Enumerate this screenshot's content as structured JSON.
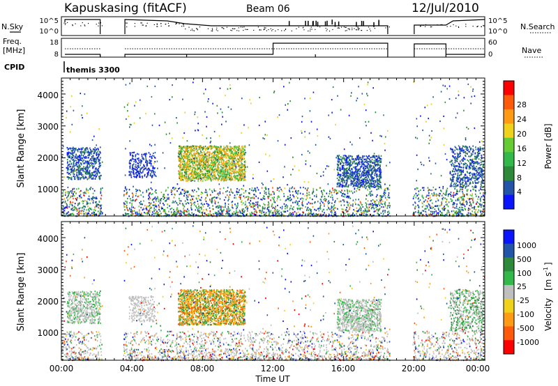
{
  "header": {
    "station": "Kapuskasing (fitACF)",
    "beam": "Beam 06",
    "date": "12/Jul/2010"
  },
  "side_labels": {
    "nsky": "N.Sky",
    "freq_line1": "Freq.",
    "freq_line2": "[MHz]",
    "cpid": "CPID",
    "nsearch": "N.Search",
    "nave": "Nave"
  },
  "cpid_value": "themis 3300",
  "colors": {
    "power_scale": [
      "#0a14ff",
      "#2255a8",
      "#2c8a3a",
      "#33b84a",
      "#66cc33",
      "#f0d21a",
      "#ff9a14",
      "#ff5a0a",
      "#ff0000"
    ],
    "velocity_scale": [
      "#0a14ff",
      "#2255a8",
      "#2c8a3a",
      "#33b84a",
      "#bfbfbf",
      "#f0d21a",
      "#ff9a14",
      "#ff5a0a",
      "#ff0000"
    ]
  },
  "chart_data": [
    {
      "type": "line",
      "panel": "noise",
      "y_tick_labels": [
        "10^5",
        "10^0"
      ],
      "right_tick_labels": [
        "10^5",
        "10^0"
      ]
    },
    {
      "type": "line",
      "panel": "frequency",
      "ylim_left": [
        8,
        18
      ],
      "y_tick_labels": [
        "18",
        "8"
      ],
      "right_tick_labels": [
        "60",
        "0"
      ]
    },
    {
      "type": "heatmap",
      "panel": "power",
      "ylabel": "Slant Range [km]",
      "y_tick_labels": [
        "1000",
        "2000",
        "3000",
        "4000"
      ],
      "ylim": [
        180,
        4500
      ],
      "colorbar": {
        "label": "Power [dB]",
        "ticks": [
          "4",
          "8",
          "12",
          "16",
          "20",
          "24",
          "28"
        ],
        "range": [
          0,
          30
        ]
      }
    },
    {
      "type": "heatmap",
      "panel": "velocity",
      "ylabel": "Slant Range [km]",
      "y_tick_labels": [
        "1000",
        "2000",
        "3000",
        "4000"
      ],
      "ylim": [
        180,
        4500
      ],
      "colorbar": {
        "label": "Velocity",
        "unit_base": "[m s",
        "unit_sup": "-1",
        "unit_end": "]",
        "ticks": [
          "1000",
          "500",
          "100",
          "25",
          "-25",
          "-100",
          "-500",
          "-1000"
        ]
      }
    },
    {
      "type": "axis",
      "xlabel": "Time UT",
      "x_tick_labels": [
        "00:00",
        "04:00",
        "08:00",
        "12:00",
        "16:00",
        "20:00",
        "00:00"
      ],
      "xlim_hours": [
        0,
        24
      ]
    }
  ]
}
